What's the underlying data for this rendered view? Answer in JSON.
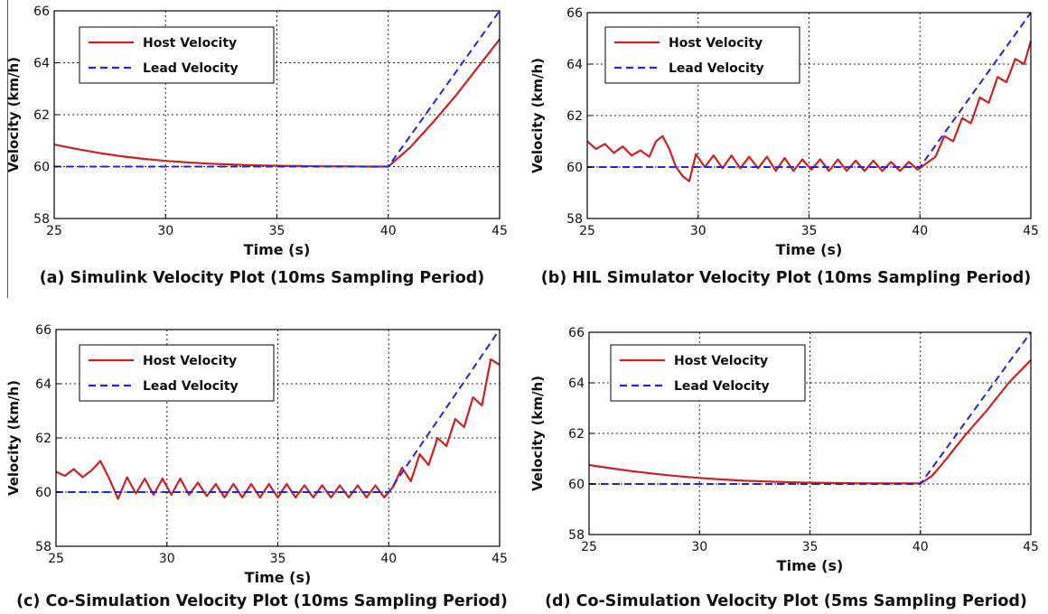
{
  "chart_data": [
    {
      "type": "line",
      "caption": "(a) Simulink Velocity Plot (10ms Sampling Period)",
      "xlabel": "Time (s)",
      "ylabel": "Velocity (km/h)",
      "xlim": [
        25,
        45
      ],
      "ylim": [
        58,
        66
      ],
      "xticks": [
        25,
        30,
        35,
        40,
        45
      ],
      "yticks": [
        58,
        60,
        62,
        64,
        66
      ],
      "grid": true,
      "legend_position": "top-left",
      "series": [
        {
          "name": "Host Velocity",
          "color": "#cc2222",
          "style": "solid",
          "x": [
            25,
            26,
            27,
            28,
            29,
            30,
            31,
            32,
            33,
            34,
            35,
            36,
            37,
            38,
            39,
            40,
            41,
            42,
            43,
            44,
            45
          ],
          "y": [
            60.85,
            60.68,
            60.53,
            60.4,
            60.3,
            60.22,
            60.16,
            60.11,
            60.08,
            60.05,
            60.03,
            60.02,
            60.01,
            60.01,
            60.0,
            60.0,
            60.75,
            61.7,
            62.7,
            63.8,
            64.9
          ]
        },
        {
          "name": "Lead Velocity",
          "color": "#2222ee",
          "style": "dashed",
          "x": [
            25,
            40,
            45
          ],
          "y": [
            60,
            60,
            66
          ]
        }
      ]
    },
    {
      "type": "line",
      "caption": "(b) HIL Simulator Velocity Plot (10ms Sampling Period)",
      "xlabel": "Time (s)",
      "ylabel": "Velocity (km/h)",
      "xlim": [
        25,
        45
      ],
      "ylim": [
        58,
        66
      ],
      "xticks": [
        25,
        30,
        35,
        40,
        45
      ],
      "yticks": [
        58,
        60,
        62,
        64,
        66
      ],
      "grid": true,
      "legend_position": "top-left",
      "series": [
        {
          "name": "Host Velocity",
          "color": "#cc2222",
          "style": "solid",
          "x": [
            25,
            25.4,
            25.8,
            26.2,
            26.6,
            27.0,
            27.4,
            27.8,
            28.1,
            28.4,
            28.7,
            29.0,
            29.3,
            29.6,
            29.9,
            30.3,
            30.7,
            31.1,
            31.5,
            31.9,
            32.3,
            32.7,
            33.1,
            33.5,
            33.9,
            34.3,
            34.7,
            35.1,
            35.5,
            35.9,
            36.3,
            36.7,
            37.1,
            37.5,
            37.9,
            38.3,
            38.7,
            39.1,
            39.5,
            39.9,
            40.3,
            40.7,
            41.1,
            41.5,
            41.9,
            42.3,
            42.7,
            43.1,
            43.5,
            43.9,
            44.3,
            44.7,
            45
          ],
          "y": [
            61.0,
            60.7,
            60.9,
            60.55,
            60.8,
            60.45,
            60.65,
            60.4,
            61.0,
            61.2,
            60.7,
            60.0,
            59.65,
            59.45,
            60.5,
            60.0,
            60.45,
            59.95,
            60.45,
            59.95,
            60.4,
            59.95,
            60.4,
            59.85,
            60.35,
            59.85,
            60.3,
            59.9,
            60.3,
            59.85,
            60.3,
            59.85,
            60.25,
            59.85,
            60.25,
            59.85,
            60.2,
            59.85,
            60.2,
            59.9,
            60.15,
            60.4,
            61.2,
            61.0,
            61.9,
            61.7,
            62.7,
            62.5,
            63.5,
            63.3,
            64.2,
            64.0,
            64.9
          ]
        },
        {
          "name": "Lead Velocity",
          "color": "#2222ee",
          "style": "dashed",
          "x": [
            25,
            40,
            45
          ],
          "y": [
            60,
            60,
            66
          ]
        }
      ]
    },
    {
      "type": "line",
      "caption": "(c) Co-Simulation Velocity Plot (10ms Sampling Period)",
      "xlabel": "Time (s)",
      "ylabel": "Velocity (km/h)",
      "xlim": [
        25,
        45
      ],
      "ylim": [
        58,
        66
      ],
      "xticks": [
        25,
        30,
        35,
        40,
        45
      ],
      "yticks": [
        58,
        60,
        62,
        64,
        66
      ],
      "grid": true,
      "legend_position": "top-left",
      "series": [
        {
          "name": "Host Velocity",
          "color": "#cc2222",
          "style": "solid",
          "x": [
            25,
            25.4,
            25.8,
            26.2,
            26.6,
            27.0,
            27.4,
            27.8,
            28.2,
            28.6,
            29.0,
            29.4,
            29.8,
            30.2,
            30.6,
            31.0,
            31.4,
            31.8,
            32.2,
            32.6,
            33.0,
            33.4,
            33.8,
            34.2,
            34.6,
            35.0,
            35.4,
            35.8,
            36.2,
            36.6,
            37.0,
            37.4,
            37.8,
            38.2,
            38.6,
            39.0,
            39.4,
            39.8,
            40.2,
            40.6,
            41.0,
            41.4,
            41.8,
            42.2,
            42.6,
            43.0,
            43.4,
            43.8,
            44.2,
            44.6,
            45
          ],
          "y": [
            60.75,
            60.6,
            60.85,
            60.55,
            60.8,
            61.15,
            60.5,
            59.75,
            60.55,
            59.95,
            60.5,
            59.9,
            60.5,
            59.9,
            60.5,
            59.9,
            60.35,
            59.85,
            60.3,
            59.8,
            60.3,
            59.8,
            60.3,
            59.8,
            60.3,
            59.8,
            60.3,
            59.8,
            60.25,
            59.8,
            60.25,
            59.8,
            60.25,
            59.8,
            60.25,
            59.8,
            60.25,
            59.8,
            60.2,
            60.9,
            60.4,
            61.4,
            61.0,
            62.0,
            61.7,
            62.7,
            62.4,
            63.5,
            63.2,
            64.9,
            64.7
          ]
        },
        {
          "name": "Lead Velocity",
          "color": "#2222ee",
          "style": "dashed",
          "x": [
            25,
            40,
            45
          ],
          "y": [
            60,
            60,
            66
          ]
        }
      ]
    },
    {
      "type": "line",
      "caption": "(d) Co-Simulation Velocity Plot (5ms Sampling Period)",
      "xlabel": "Time (s)",
      "ylabel": "Velocity (km/h)",
      "xlim": [
        25,
        45
      ],
      "ylim": [
        58,
        66
      ],
      "xticks": [
        25,
        30,
        35,
        40,
        45
      ],
      "yticks": [
        58,
        60,
        62,
        64,
        66
      ],
      "grid": true,
      "legend_position": "top-left",
      "series": [
        {
          "name": "Host Velocity",
          "color": "#cc2222",
          "style": "solid",
          "x": [
            25,
            26,
            27,
            28,
            29,
            30,
            31,
            32,
            33,
            34,
            35,
            36,
            37,
            38,
            39,
            40,
            40.5,
            41,
            42,
            43,
            44,
            45
          ],
          "y": [
            60.75,
            60.62,
            60.5,
            60.4,
            60.31,
            60.24,
            60.18,
            60.13,
            60.1,
            60.07,
            60.05,
            60.04,
            60.03,
            60.02,
            60.02,
            60.02,
            60.3,
            60.8,
            61.9,
            62.9,
            64.0,
            64.9
          ]
        },
        {
          "name": "Lead Velocity",
          "color": "#2222ee",
          "style": "dashed",
          "x": [
            25,
            40,
            45
          ],
          "y": [
            60,
            60,
            66
          ]
        }
      ]
    }
  ]
}
